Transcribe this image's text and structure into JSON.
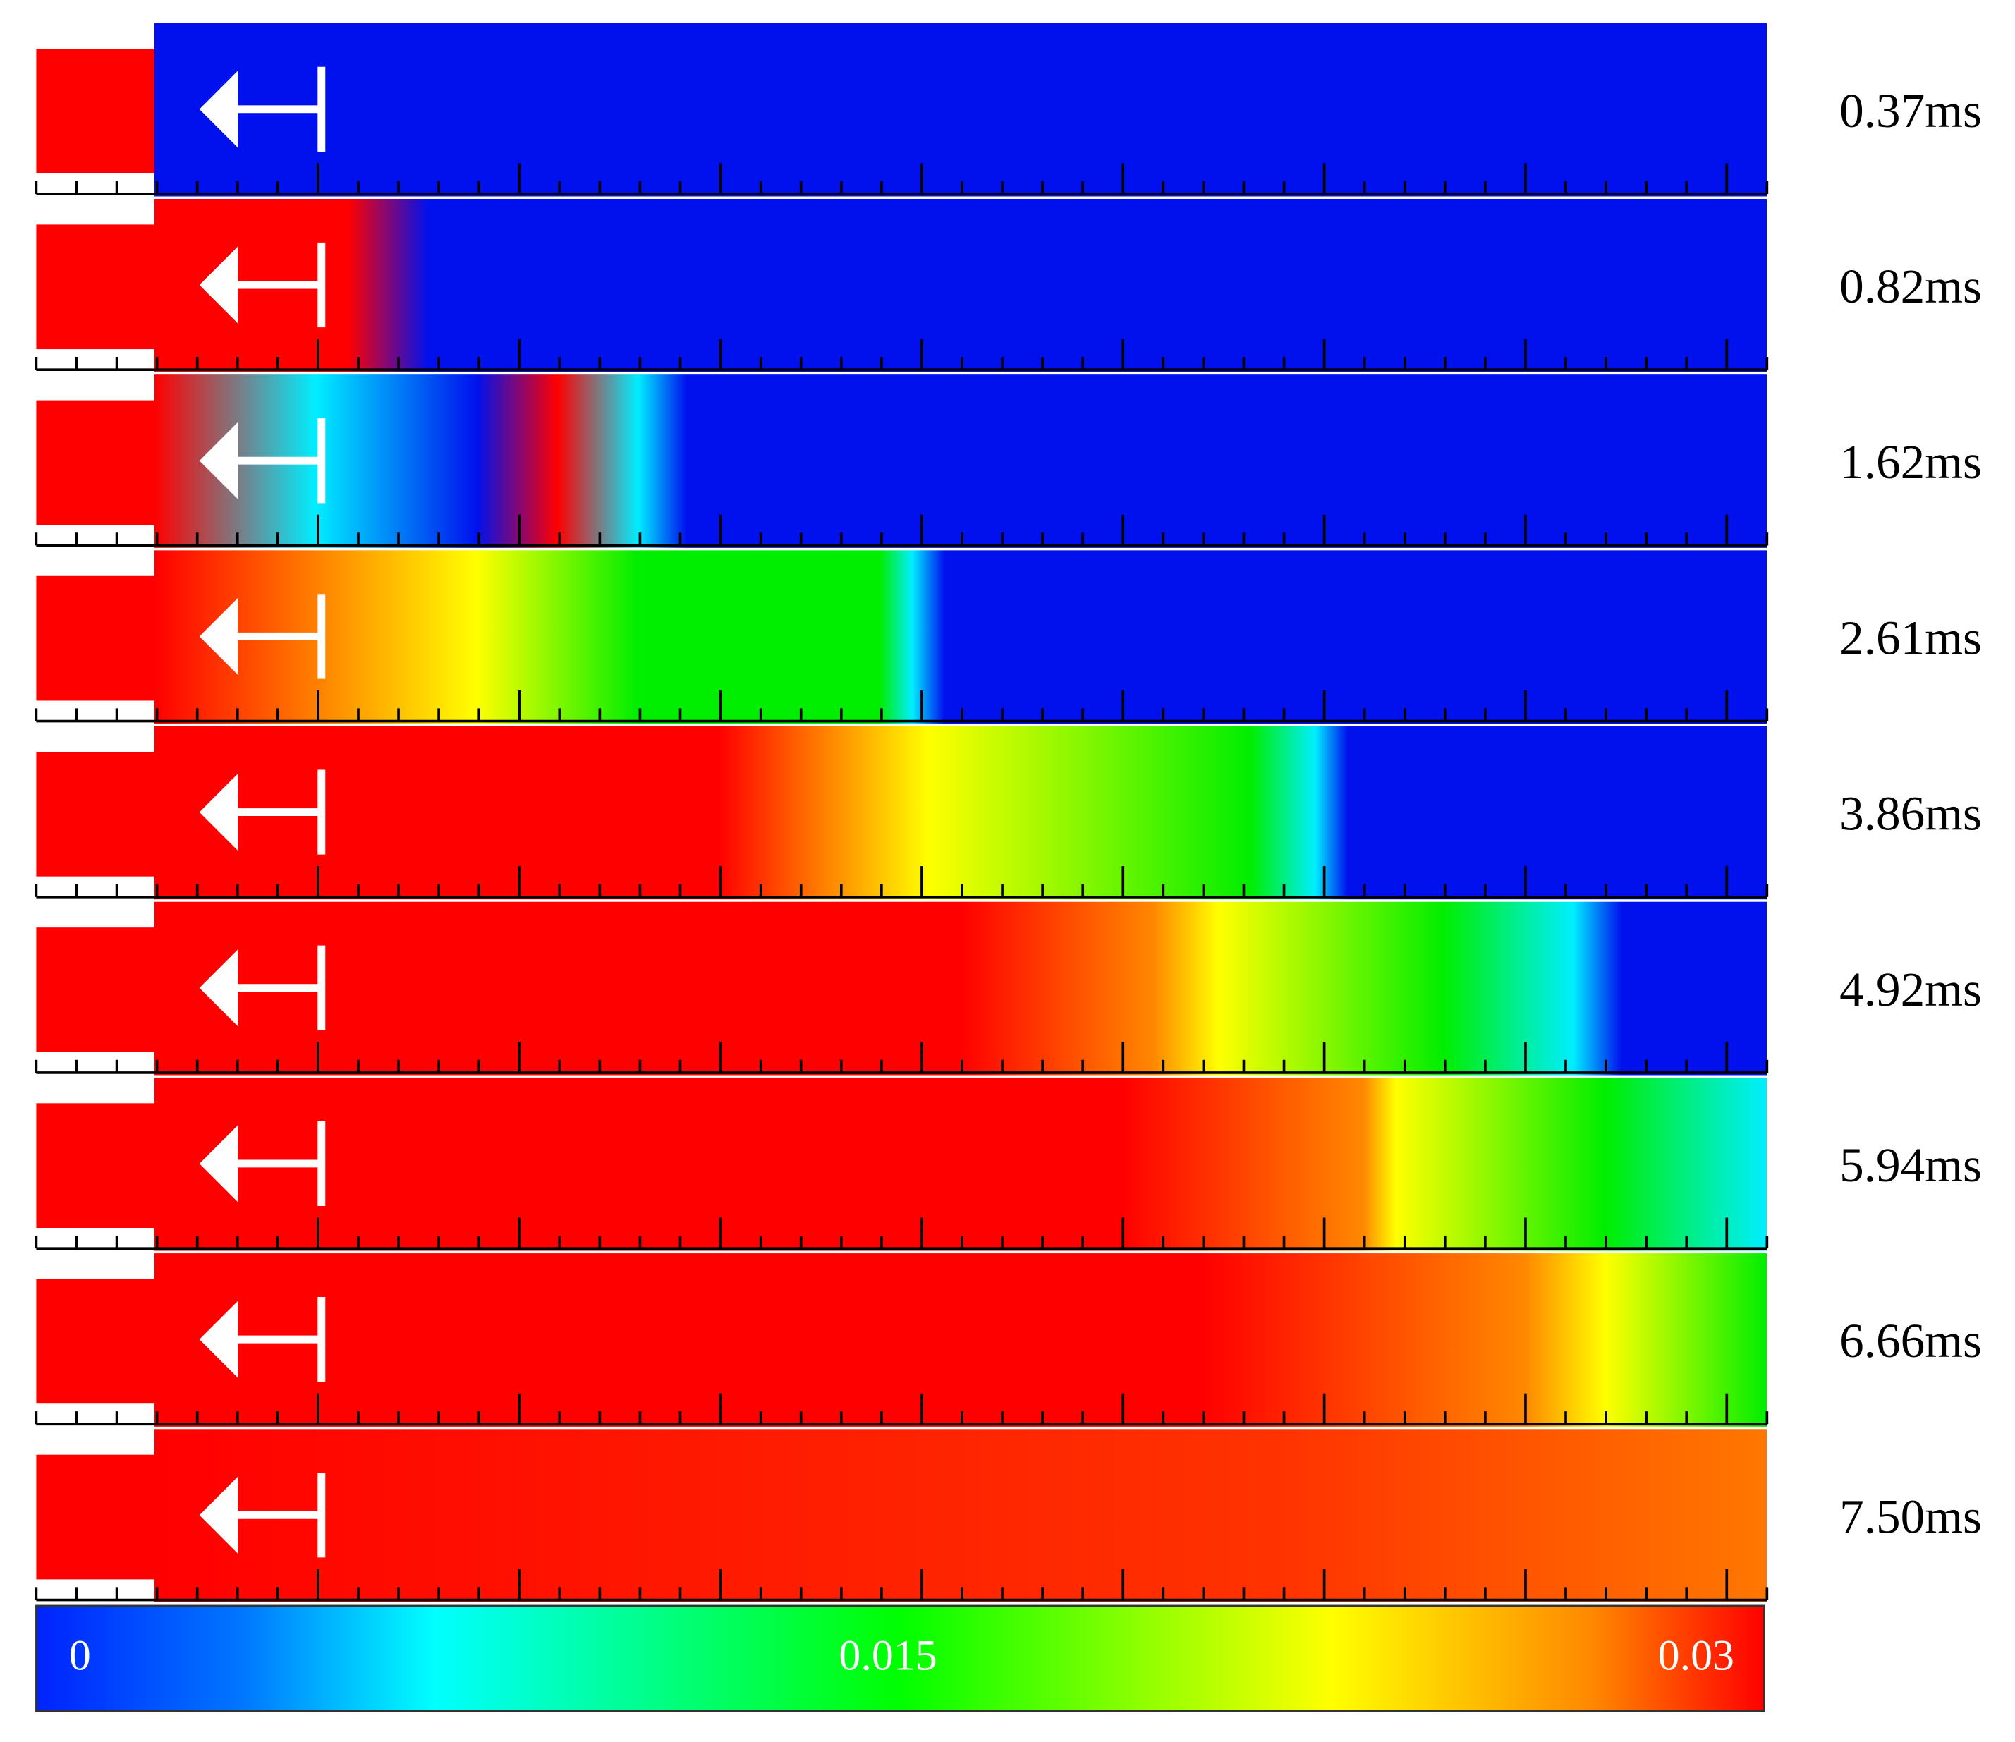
{
  "frames": [
    {
      "label": "0.37ms"
    },
    {
      "label": "0.82ms"
    },
    {
      "label": "1.62ms"
    },
    {
      "label": "2.61ms"
    },
    {
      "label": "3.86ms"
    },
    {
      "label": "4.92ms"
    },
    {
      "label": "5.94ms"
    },
    {
      "label": "6.66ms"
    },
    {
      "label": "7.50ms"
    }
  ],
  "colorbar": {
    "ticks": [
      0,
      0.015,
      0.03
    ]
  }
}
